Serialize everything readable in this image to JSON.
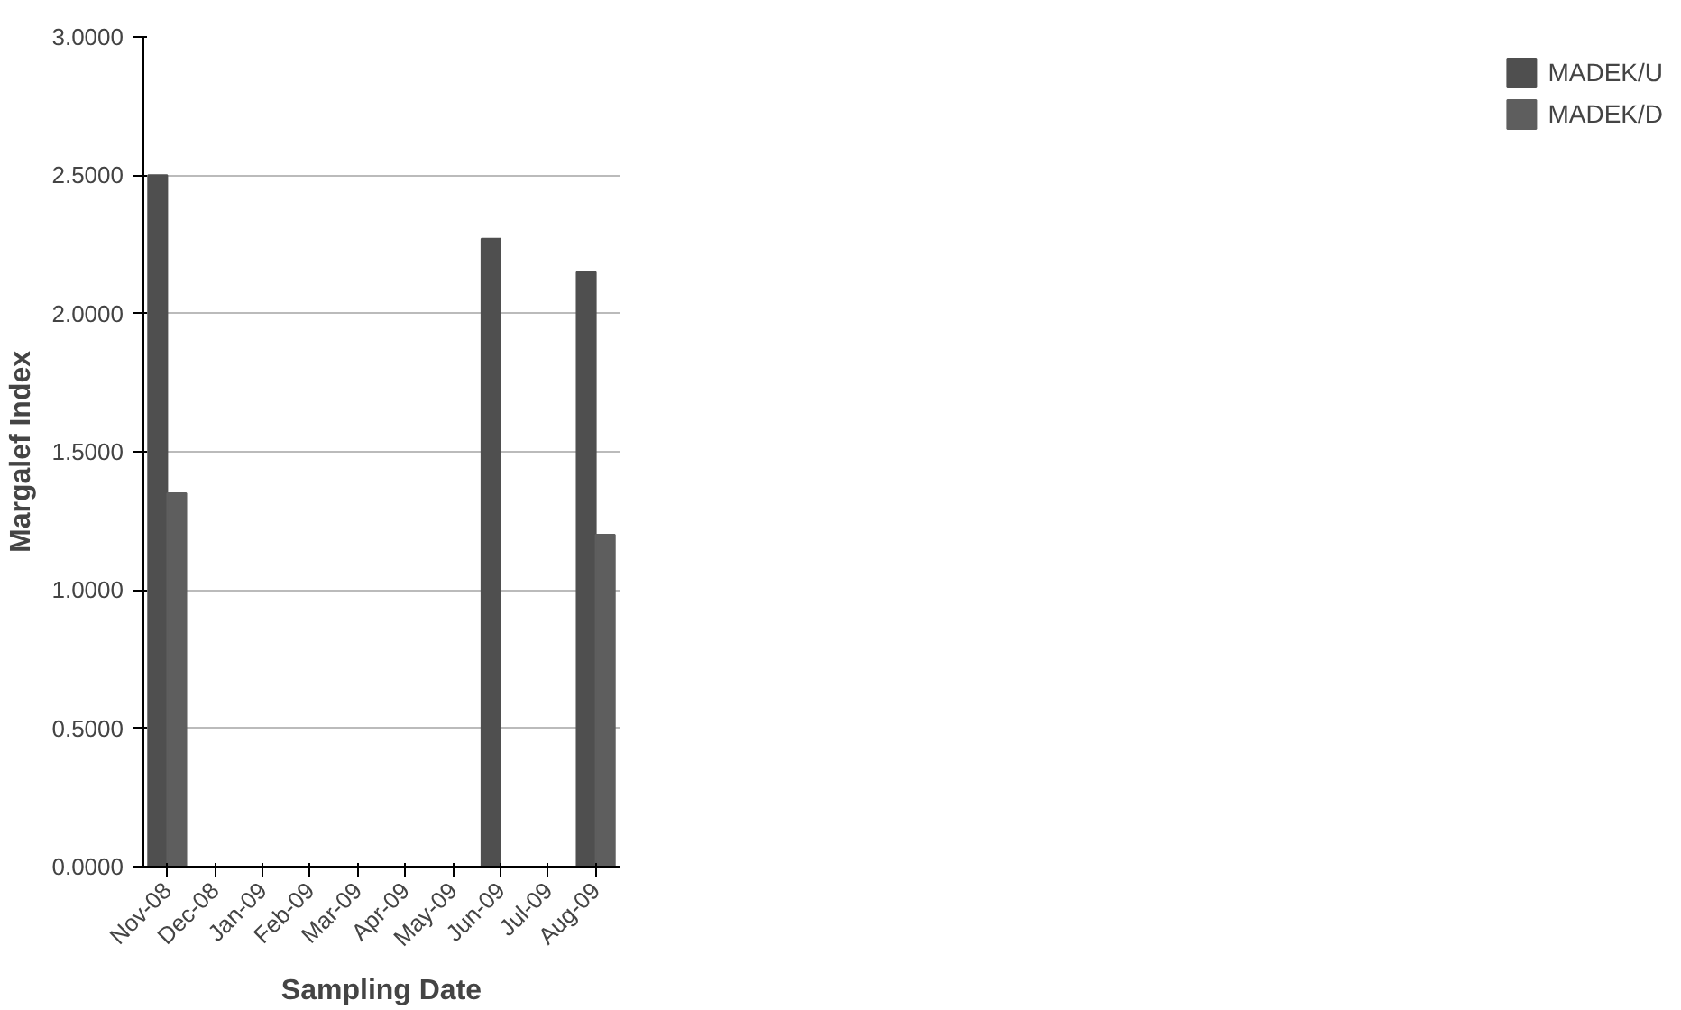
{
  "chart_data": {
    "type": "bar",
    "xlabel": "Sampling Date",
    "ylabel": "Margalef Index",
    "categories": [
      "Nov-08",
      "Dec-08",
      "Jan-09",
      "Feb-09",
      "Mar-09",
      "Apr-09",
      "May-09",
      "Jun-09",
      "Jul-09",
      "Aug-09"
    ],
    "series": [
      {
        "name": "MADEK/U",
        "color": "#4f4f4f",
        "values": [
          2.5,
          null,
          null,
          null,
          null,
          null,
          null,
          2.27,
          null,
          2.15
        ]
      },
      {
        "name": "MADEK/D",
        "color": "#5e5e5e",
        "values": [
          1.35,
          null,
          null,
          null,
          null,
          null,
          null,
          null,
          null,
          1.2
        ]
      }
    ],
    "ylim": [
      0,
      3
    ],
    "yticks": [
      {
        "value": 0,
        "label": "0.0000"
      },
      {
        "value": 0.5,
        "label": "0.5000"
      },
      {
        "value": 1,
        "label": "1.0000"
      },
      {
        "value": 1.5,
        "label": "1.5000"
      },
      {
        "value": 2,
        "label": "2.0000"
      },
      {
        "value": 2.5,
        "label": "2.5000"
      },
      {
        "value": 3,
        "label": "3.0000"
      }
    ],
    "grid": "y",
    "legend": "right"
  }
}
